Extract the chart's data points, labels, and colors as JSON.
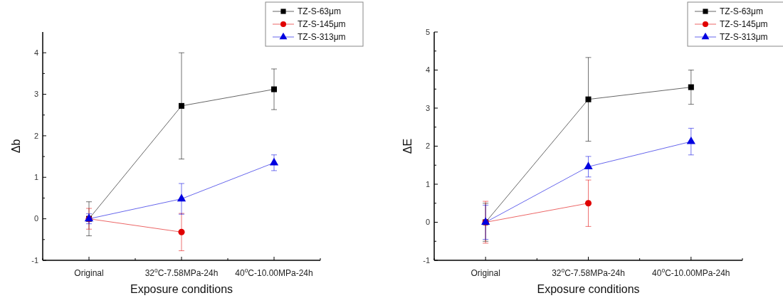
{
  "chart_data": [
    {
      "type": "line",
      "xlabel": "Exposure conditions",
      "ylabel": "Δb",
      "categories": [
        "Original",
        "32$^{o}$C-7.58MPa-24h",
        "40$^{o}$C-10.00MPa-24h"
      ],
      "ylim": [
        -1,
        4.5
      ],
      "yticks": [
        -1,
        0,
        1,
        2,
        3,
        4
      ],
      "legend": "top right",
      "grid": false,
      "series": [
        {
          "name": "TZ-S-63μm",
          "color": "#000000",
          "marker": "square",
          "values": [
            0,
            2.72,
            3.12
          ],
          "errors": [
            0.41,
            1.28,
            0.49
          ]
        },
        {
          "name": "TZ-S-145μm",
          "color": "#e00000",
          "marker": "circle",
          "values": [
            0,
            -0.32,
            null
          ],
          "errors": [
            0.25,
            0.45,
            null
          ]
        },
        {
          "name": "TZ-S-313μm",
          "color": "#0000e0",
          "marker": "triangle",
          "values": [
            0,
            0.48,
            1.35
          ],
          "errors": [
            0.12,
            0.37,
            0.19
          ]
        }
      ]
    },
    {
      "type": "line",
      "xlabel": "Exposure conditions",
      "ylabel": "ΔE",
      "categories": [
        "Original",
        "32$^{o}$C-7.58MPa-24h",
        "40$^{o}$C-10.00MPa-24h"
      ],
      "ylim": [
        -1,
        5
      ],
      "yticks": [
        -1,
        0,
        1,
        2,
        3,
        4,
        5
      ],
      "legend": "top right",
      "grid": false,
      "series": [
        {
          "name": "TZ-S-63μm",
          "color": "#000000",
          "marker": "square",
          "values": [
            0,
            3.23,
            3.55
          ],
          "errors": [
            0.5,
            1.1,
            0.45
          ]
        },
        {
          "name": "TZ-S-145μm",
          "color": "#e00000",
          "marker": "circle",
          "values": [
            0,
            0.5,
            null
          ],
          "errors": [
            0.55,
            0.61,
            null
          ]
        },
        {
          "name": "TZ-S-313μm",
          "color": "#0000e0",
          "marker": "triangle",
          "values": [
            0,
            1.46,
            2.12
          ],
          "errors": [
            0.45,
            0.27,
            0.35
          ]
        }
      ]
    }
  ]
}
